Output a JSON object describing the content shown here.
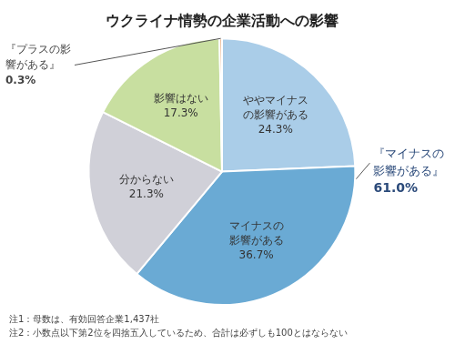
{
  "chart_data": {
    "type": "pie",
    "title": "ウクライナ情勢の企業活動への影響",
    "categories": [
      "ややマイナス\nの影響がある",
      "マイナスの\n影響がある",
      "分からない",
      "影響はない",
      null
    ],
    "values": [
      24.3,
      36.7,
      21.3,
      17.3,
      0.3
    ],
    "value_labels": [
      "24.3%",
      "36.7%",
      "21.3%",
      "17.3%",
      null
    ],
    "colors": [
      "#aacde8",
      "#6aaad4",
      "#d0d0d8",
      "#c8dfa0",
      "#e8a878"
    ],
    "data_labels": true,
    "legend": false,
    "annotations": [
      "『マイナスの\n影響がある』\n61.0%",
      "『プラスの影\n響がある』\n0.3%"
    ],
    "notes": [
      "注1：母数は、有効回答企業1,437社",
      "注2：小数点以下第2位を四捨五入しているため、合計は必ずしも100とはならない"
    ]
  }
}
